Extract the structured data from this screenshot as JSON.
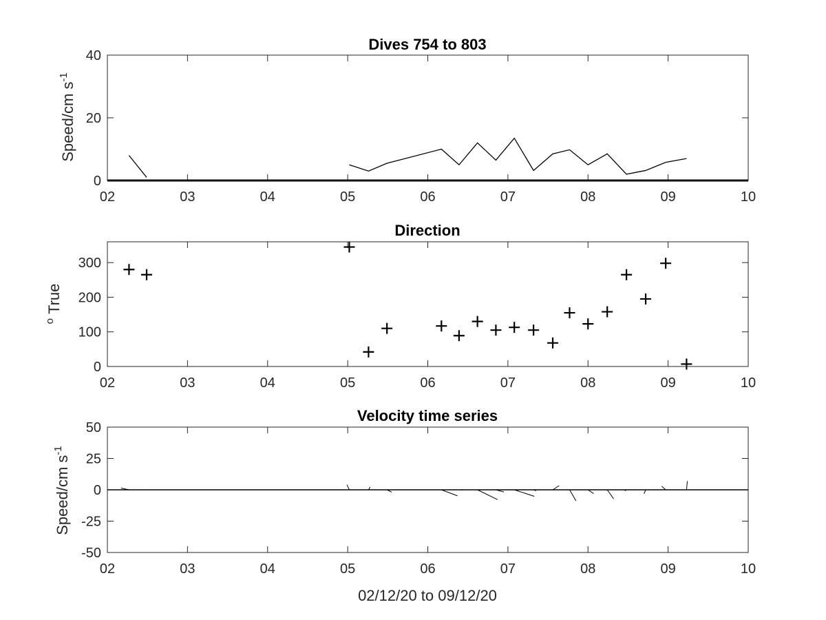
{
  "figure": {
    "xlabel": "02/12/20 to 09/12/20",
    "colors": {
      "axis": "#262626",
      "line": "#000000",
      "background": "#ffffff"
    }
  },
  "chart_data": [
    {
      "type": "line",
      "title": "Dives 754 to 803",
      "xlabel": "",
      "ylabel": "Speed/cm s",
      "ylabel_superscript": "-1",
      "xlim": [
        2,
        10
      ],
      "ylim": [
        0,
        40
      ],
      "xticks": [
        2,
        3,
        4,
        5,
        6,
        7,
        8,
        9,
        10
      ],
      "xtick_labels": [
        "02",
        "03",
        "04",
        "05",
        "06",
        "07",
        "08",
        "09",
        "10"
      ],
      "yticks": [
        0,
        20,
        40
      ],
      "ytick_labels": [
        "0",
        "20",
        "40"
      ],
      "grid": false,
      "baseline": 0,
      "segments": [
        {
          "x": [
            2.27,
            2.49
          ],
          "y": [
            8,
            1
          ]
        },
        {
          "x": [
            5.02,
            5.26,
            5.49,
            6.17,
            6.39,
            6.62,
            6.85,
            7.08,
            7.32,
            7.56,
            7.77,
            8.0,
            8.24,
            8.48,
            8.72,
            8.97,
            9.23
          ],
          "y": [
            5,
            3,
            5.5,
            10,
            5,
            12,
            6.5,
            13.5,
            3.2,
            8.5,
            9.8,
            5,
            8.5,
            2,
            3.2,
            5.8,
            7
          ]
        }
      ]
    },
    {
      "type": "scatter",
      "title": "Direction",
      "xlabel": "",
      "ylabel": "True",
      "ylabel_prefix_superscript": "o",
      "marker": "+",
      "xlim": [
        2,
        10
      ],
      "ylim": [
        0,
        360
      ],
      "xticks": [
        2,
        3,
        4,
        5,
        6,
        7,
        8,
        9,
        10
      ],
      "xtick_labels": [
        "02",
        "03",
        "04",
        "05",
        "06",
        "07",
        "08",
        "09",
        "10"
      ],
      "yticks": [
        0,
        100,
        200,
        300
      ],
      "ytick_labels": [
        "0",
        "100",
        "200",
        "300"
      ],
      "grid": false,
      "x": [
        2.27,
        2.49,
        5.02,
        5.26,
        5.49,
        6.17,
        6.39,
        6.62,
        6.85,
        7.08,
        7.32,
        7.56,
        7.77,
        8.0,
        8.24,
        8.48,
        8.72,
        8.97,
        9.23
      ],
      "y": [
        280,
        265,
        345,
        42,
        110,
        117,
        89,
        130,
        105,
        113,
        105,
        68,
        155,
        123,
        158,
        265,
        195,
        298,
        7
      ]
    },
    {
      "type": "line",
      "title": "Velocity time series",
      "xlabel": "02/12/20 to 09/12/20",
      "ylabel": "Speed/cm s",
      "ylabel_superscript": "-1",
      "style": "stick-vectors",
      "xlim": [
        2,
        10
      ],
      "ylim": [
        -50,
        50
      ],
      "xticks": [
        2,
        3,
        4,
        5,
        6,
        7,
        8,
        9,
        10
      ],
      "xtick_labels": [
        "02",
        "03",
        "04",
        "05",
        "06",
        "07",
        "08",
        "09",
        "10"
      ],
      "yticks": [
        -50,
        -25,
        0,
        25,
        50
      ],
      "ytick_labels": [
        "-50",
        "-25",
        "0",
        "25",
        "50"
      ],
      "grid": false,
      "baseline": 0,
      "vectors": [
        {
          "x": 2.27,
          "u": -0.1,
          "v": 1.4
        },
        {
          "x": 2.49,
          "u": 0.0,
          "v": 0.3
        },
        {
          "x": 5.02,
          "u": -0.03,
          "v": 4.1
        },
        {
          "x": 5.26,
          "u": 0.02,
          "v": 2.2
        },
        {
          "x": 5.49,
          "u": 0.06,
          "v": -1.9
        },
        {
          "x": 6.17,
          "u": 0.2,
          "v": -4.8
        },
        {
          "x": 6.39,
          "u": 0.06,
          "v": -0.1
        },
        {
          "x": 6.62,
          "u": 0.25,
          "v": -7.8
        },
        {
          "x": 6.85,
          "u": 0.1,
          "v": -1.7
        },
        {
          "x": 7.08,
          "u": 0.25,
          "v": -5.2
        },
        {
          "x": 7.32,
          "u": 0.03,
          "v": -0.8
        },
        {
          "x": 7.56,
          "u": 0.08,
          "v": 3.3
        },
        {
          "x": 7.77,
          "u": 0.08,
          "v": -8.8
        },
        {
          "x": 8.0,
          "u": 0.07,
          "v": -3.0
        },
        {
          "x": 8.24,
          "u": 0.08,
          "v": -7.2
        },
        {
          "x": 8.48,
          "u": -0.02,
          "v": -0.8
        },
        {
          "x": 8.72,
          "u": -0.02,
          "v": -3.1
        },
        {
          "x": 8.97,
          "u": -0.05,
          "v": 2.9
        },
        {
          "x": 9.23,
          "u": 0.01,
          "v": 6.9
        }
      ]
    }
  ]
}
